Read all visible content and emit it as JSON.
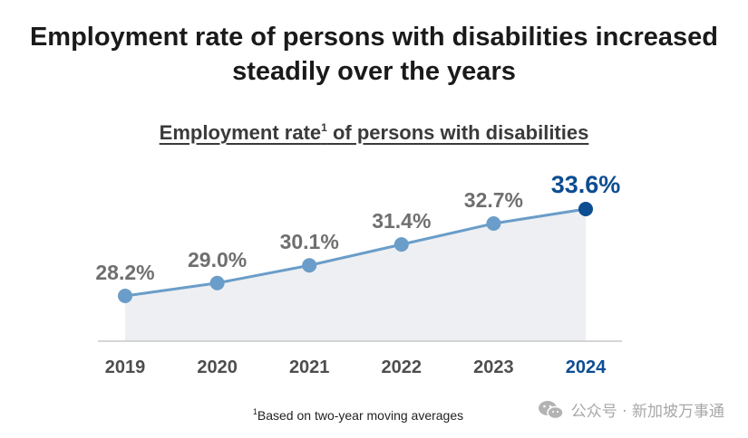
{
  "header": {
    "title_line1": "Employment rate of persons with disabilities increased",
    "title_line2": "steadily over the years"
  },
  "chart_title": {
    "text": "Employment rate",
    "superscript": "1",
    "suffix": " of persons with disabilities"
  },
  "footnote": {
    "superscript": "1",
    "text": "Based on two-year moving averages"
  },
  "watermark": {
    "text": "公众号 · 新加坡万事通",
    "icon": "wechat-icon"
  },
  "colors": {
    "line": "#6a9dc9",
    "point": "#6a9dc9",
    "highlight": "#0d4d91",
    "area": "#eeeff2",
    "label": "#6f6f6f",
    "axis_label": "#4e4e4e"
  },
  "chart_data": {
    "type": "line",
    "title": "Employment rate1 of persons with disabilities",
    "categories": [
      "2019",
      "2020",
      "2021",
      "2022",
      "2023",
      "2024"
    ],
    "values": [
      28.2,
      29.0,
      30.1,
      31.4,
      32.7,
      33.6
    ],
    "labels": [
      "28.2%",
      "29.0%",
      "30.1%",
      "31.4%",
      "32.7%",
      "33.6%"
    ],
    "highlight_index": 5,
    "area_fill": true,
    "grid": false,
    "xlabel": "",
    "ylabel": ""
  }
}
